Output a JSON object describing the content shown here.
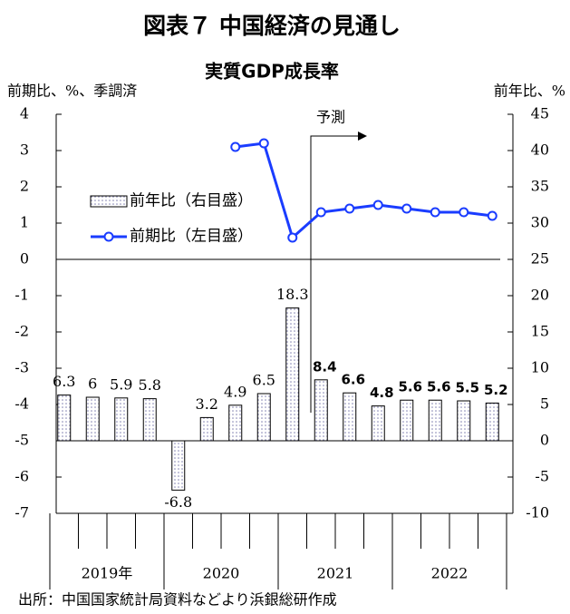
{
  "chart_data": {
    "type": "bar_line",
    "title": "図表７ 中国経済の見通し",
    "subtitle": "実質GDP成長率",
    "y_label": "前期比、%、季調済",
    "y2_label": "前年比、%",
    "annotation": "予測",
    "source": "出所：中国国家統計局資料などより浜銀総研作成",
    "categories": [
      null,
      null,
      null,
      null,
      null,
      null,
      null,
      null,
      null,
      null,
      null,
      null,
      null,
      null,
      null,
      null
    ],
    "x_groups": [
      "2019年",
      "2020",
      "2021",
      "2022"
    ],
    "series": [
      {
        "name": "前年比（右目盛）",
        "kind": "bar",
        "axis": "y2",
        "color": "#8080b0",
        "values": [
          6.3,
          6.0,
          5.9,
          5.8,
          -6.8,
          3.2,
          4.9,
          6.5,
          18.3,
          8.4,
          6.6,
          4.8,
          5.6,
          5.6,
          5.5,
          5.2
        ]
      },
      {
        "name": "前期比（左目盛）",
        "kind": "line",
        "axis": "y",
        "color": "#1a3cff",
        "values": [
          null,
          null,
          null,
          null,
          null,
          null,
          3.1,
          3.2,
          0.6,
          1.3,
          1.4,
          1.5,
          1.4,
          1.3,
          1.3,
          1.2
        ]
      }
    ],
    "ylim": [
      -7,
      4
    ],
    "yticks": [
      4,
      3,
      2,
      1,
      0,
      -1,
      -2,
      -3,
      -4,
      -5,
      -6,
      -7
    ],
    "y2lim": [
      -10,
      45
    ],
    "y2ticks": [
      45,
      40,
      35,
      30,
      25,
      20,
      15,
      10,
      5,
      0,
      -5,
      -10
    ]
  }
}
